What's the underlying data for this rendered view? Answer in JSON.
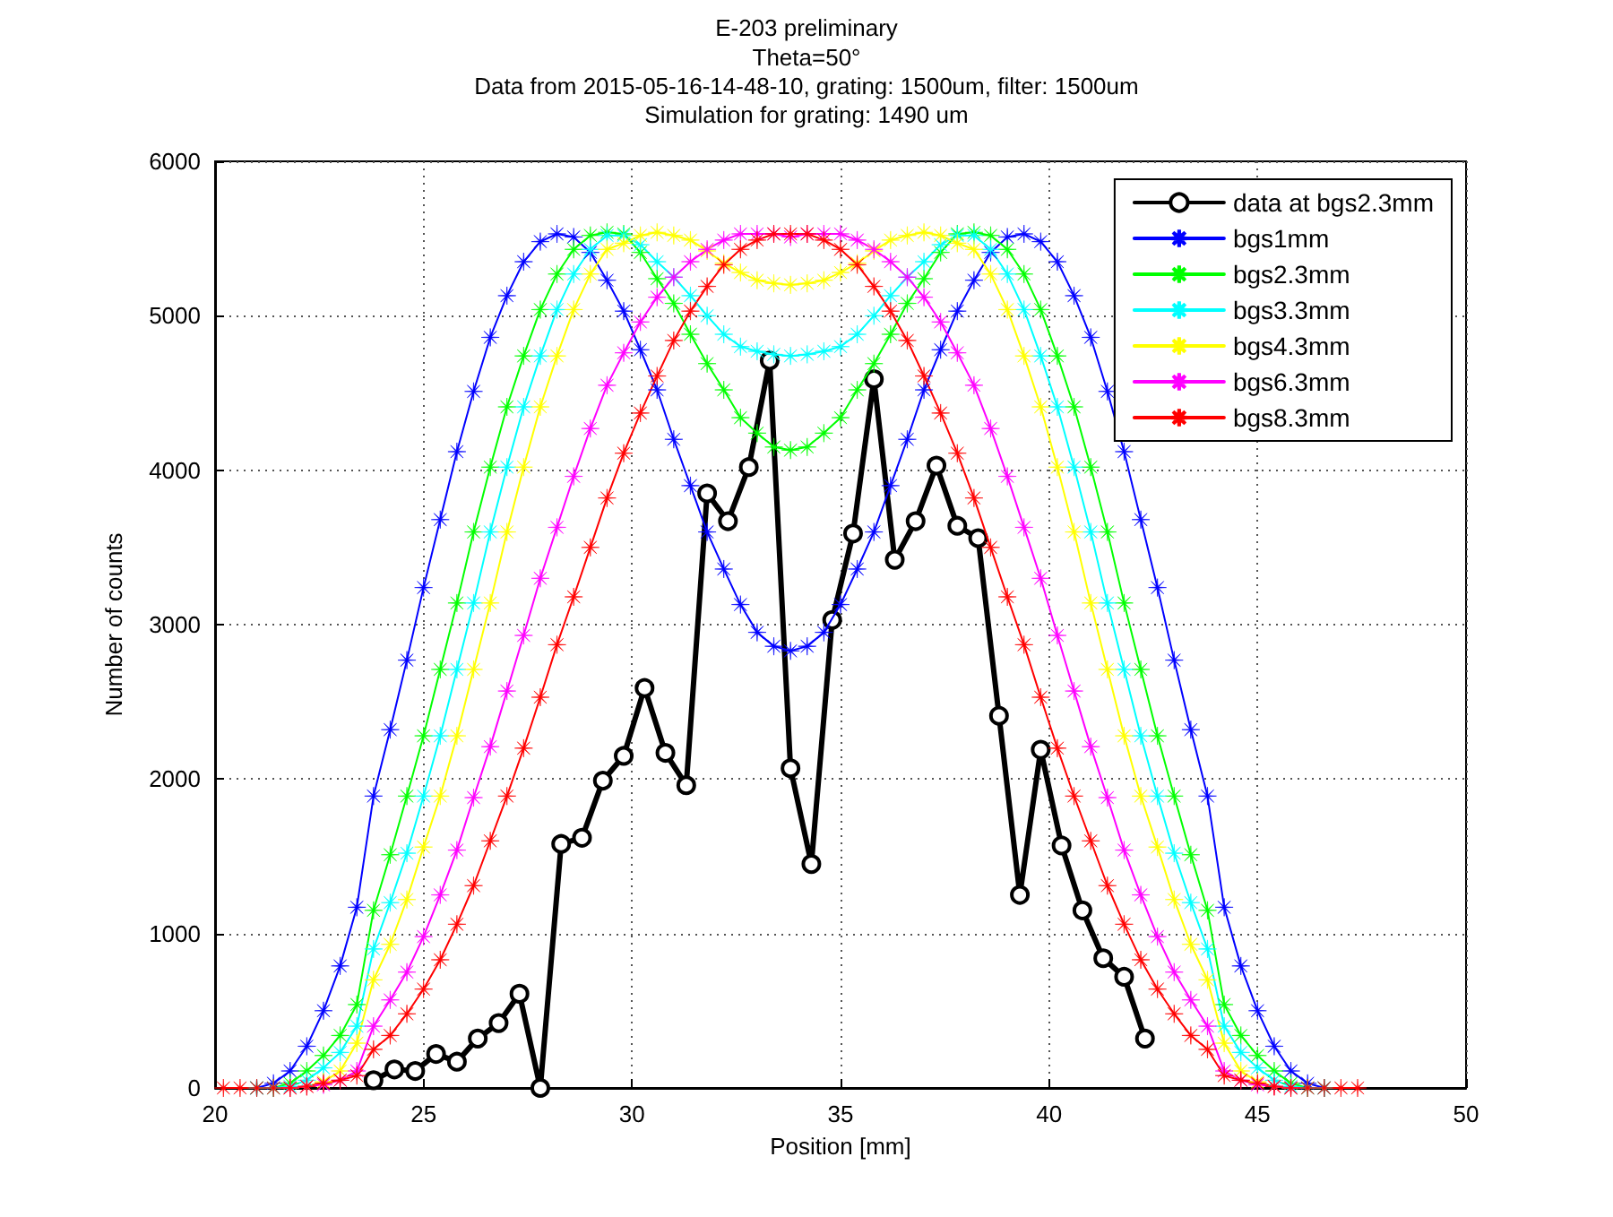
{
  "chart_data": {
    "type": "line",
    "title": "E-203 preliminary",
    "subtitle": "Theta=50°\nData from 2015-05-16-14-48-10, grating: 1500um, filter: 1500um\nSimulation for grating: 1490 um",
    "xlabel": "Position [mm]",
    "ylabel": "Number of counts",
    "x": [
      20.2,
      20.6,
      21.0,
      21.4,
      21.8,
      22.2,
      22.6,
      23.0,
      23.4,
      23.8,
      24.2,
      24.6,
      25.0,
      25.4,
      25.8,
      26.2,
      26.6,
      27.0,
      27.4,
      27.8,
      28.2,
      28.6,
      29.0,
      29.4,
      29.8,
      30.2,
      30.6,
      31.0,
      31.4,
      31.8,
      32.2,
      32.6,
      33.0,
      33.4,
      33.8,
      34.2,
      34.6,
      35.0,
      35.4,
      35.8,
      36.2,
      36.6,
      37.0,
      37.4,
      37.8,
      38.2,
      38.6,
      39.0,
      39.4,
      39.8,
      40.2,
      40.6,
      41.0,
      41.4,
      41.8,
      42.2,
      42.6,
      43.0,
      43.4,
      43.8,
      44.2,
      44.6,
      45.0,
      45.4,
      45.8,
      46.2,
      46.6,
      47.0,
      47.4
    ],
    "series": [
      {
        "name": "data at bgs2.3mm",
        "color": "#000000",
        "marker": "circle",
        "x": [
          23.8,
          24.3,
          24.8,
          25.3,
          25.8,
          26.3,
          26.8,
          27.3,
          27.8,
          28.3,
          28.8,
          29.3,
          29.8,
          30.3,
          30.8,
          31.3,
          31.8,
          32.3,
          32.8,
          33.3,
          33.8,
          34.3,
          34.8,
          35.3,
          35.8,
          36.3,
          36.8,
          37.3,
          37.8,
          38.3,
          38.8,
          39.3,
          39.8,
          40.3,
          40.8,
          41.3,
          41.8,
          42.3
        ],
        "values": [
          50,
          120,
          110,
          220,
          170,
          320,
          420,
          610,
          0,
          1580,
          1620,
          1990,
          2150,
          2590,
          2170,
          1960,
          3850,
          3670,
          4020,
          4710,
          2070,
          1450,
          3030,
          3590,
          4590,
          3420,
          3670,
          4030,
          3640,
          3560,
          2410,
          1250,
          2190,
          1570,
          1150,
          840,
          720,
          320
        ]
      },
      {
        "name": "bgs1mm",
        "color": "#0000ff",
        "marker": "star",
        "values": [
          null,
          null,
          0,
          30,
          110,
          270,
          500,
          790,
          1170,
          1890,
          2320,
          2770,
          3240,
          3680,
          4120,
          4510,
          4860,
          5130,
          5350,
          5480,
          5530,
          5510,
          5410,
          5230,
          5030,
          4780,
          4520,
          4200,
          3900,
          3600,
          3360,
          3130,
          2950,
          2860,
          2830,
          2860,
          2950,
          3130,
          3360,
          3600,
          3900,
          4200,
          4520,
          4780,
          5030,
          5230,
          5410,
          5510,
          5530,
          5480,
          5350,
          5130,
          4860,
          4510,
          4120,
          3680,
          3240,
          2770,
          2320,
          1890,
          1170,
          790,
          500,
          270,
          110,
          30,
          0,
          null,
          null
        ]
      },
      {
        "name": "bgs2.3mm",
        "color": "#00ff00",
        "marker": "star",
        "values": [
          null,
          null,
          0,
          0,
          30,
          110,
          210,
          340,
          540,
          1150,
          1510,
          1890,
          2280,
          2710,
          3140,
          3600,
          4020,
          4410,
          4740,
          5040,
          5270,
          5430,
          5520,
          5540,
          5530,
          5410,
          5240,
          5080,
          4880,
          4690,
          4520,
          4340,
          4240,
          4150,
          4130,
          4150,
          4240,
          4340,
          4520,
          4690,
          4880,
          5080,
          5240,
          5410,
          5530,
          5540,
          5520,
          5430,
          5270,
          5040,
          4740,
          4410,
          4020,
          3600,
          3140,
          2710,
          2280,
          1890,
          1510,
          1150,
          540,
          340,
          210,
          110,
          30,
          0,
          0,
          null,
          null
        ]
      },
      {
        "name": "bgs3.3mm",
        "color": "#00ffff",
        "marker": "star",
        "values": [
          null,
          null,
          0,
          0,
          10,
          50,
          130,
          230,
          400,
          900,
          1200,
          1520,
          1890,
          2280,
          2710,
          3140,
          3600,
          4020,
          4410,
          4740,
          5040,
          5270,
          5430,
          5520,
          5520,
          5460,
          5350,
          5250,
          5130,
          5000,
          4880,
          4800,
          4770,
          4750,
          4740,
          4750,
          4770,
          4800,
          4880,
          5000,
          5130,
          5250,
          5350,
          5460,
          5520,
          5520,
          5430,
          5270,
          5040,
          4740,
          4410,
          4020,
          3600,
          3140,
          2710,
          2280,
          1890,
          1520,
          1200,
          900,
          400,
          230,
          130,
          50,
          10,
          0,
          0,
          null,
          null
        ]
      },
      {
        "name": "bgs4.3mm",
        "color": "#ffff00",
        "marker": "star",
        "values": [
          null,
          null,
          null,
          null,
          0,
          10,
          40,
          110,
          290,
          700,
          930,
          1220,
          1560,
          1890,
          2280,
          2710,
          3140,
          3600,
          4020,
          4410,
          4740,
          5040,
          5270,
          5430,
          5470,
          5520,
          5540,
          5520,
          5490,
          5420,
          5340,
          5280,
          5230,
          5210,
          5200,
          5210,
          5230,
          5280,
          5340,
          5420,
          5490,
          5520,
          5540,
          5520,
          5470,
          5430,
          5270,
          5040,
          4740,
          4410,
          4020,
          3600,
          3140,
          2710,
          2280,
          1890,
          1560,
          1220,
          930,
          700,
          290,
          110,
          40,
          10,
          0,
          null,
          null,
          null,
          null
        ]
      },
      {
        "name": "bgs6.3mm",
        "color": "#ff00ff",
        "marker": "star",
        "values": [
          null,
          null,
          null,
          null,
          0,
          10,
          20,
          50,
          110,
          400,
          570,
          750,
          980,
          1250,
          1540,
          1880,
          2210,
          2570,
          2930,
          3300,
          3630,
          3960,
          4270,
          4550,
          4760,
          4960,
          5120,
          5250,
          5350,
          5430,
          5490,
          5530,
          5530,
          5530,
          5510,
          5530,
          5530,
          5530,
          5490,
          5430,
          5350,
          5250,
          5120,
          4960,
          4760,
          4550,
          4270,
          3960,
          3630,
          3300,
          2930,
          2570,
          2210,
          1880,
          1540,
          1250,
          980,
          750,
          570,
          400,
          110,
          50,
          20,
          10,
          0,
          null,
          null,
          null,
          null
        ]
      },
      {
        "name": "bgs8.3mm",
        "color": "#ff0000",
        "marker": "star",
        "values": [
          0,
          0,
          0,
          0,
          0,
          10,
          30,
          50,
          80,
          250,
          340,
          480,
          640,
          830,
          1060,
          1310,
          1600,
          1890,
          2200,
          2530,
          2870,
          3180,
          3500,
          3820,
          4110,
          4370,
          4610,
          4840,
          5030,
          5190,
          5330,
          5430,
          5490,
          5530,
          5530,
          5530,
          5490,
          5430,
          5330,
          5190,
          5030,
          4840,
          4610,
          4370,
          4110,
          3820,
          3500,
          3180,
          2870,
          2530,
          2200,
          1890,
          1600,
          1310,
          1060,
          830,
          640,
          480,
          340,
          250,
          80,
          50,
          30,
          10,
          0,
          0,
          0,
          0,
          0
        ]
      }
    ],
    "xlim": [
      20,
      50
    ],
    "xticks": [
      20,
      25,
      30,
      35,
      40,
      45,
      50
    ],
    "ylim": [
      0,
      6000
    ],
    "yticks": [
      0,
      1000,
      2000,
      3000,
      4000,
      5000,
      6000
    ],
    "grid": true,
    "legend": "top right",
    "line_style": "solid"
  }
}
